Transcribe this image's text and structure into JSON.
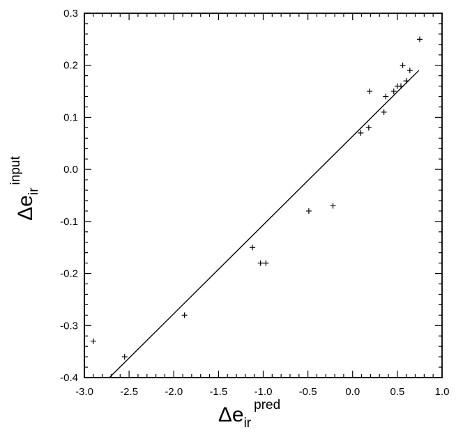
{
  "chart_data": {
    "type": "scatter",
    "title": "",
    "xlabel": {
      "main": "Δe",
      "subscript": "ir",
      "superscript": "pred"
    },
    "ylabel": {
      "main": "Δe",
      "subscript": "ir",
      "superscript": "input"
    },
    "xlim": [
      -3.0,
      1.0
    ],
    "ylim": [
      -0.4,
      0.3
    ],
    "xticks": [
      "-3.0",
      "-2.5",
      "-2.0",
      "-1.5",
      "-1.0",
      "-0.5",
      "0.0",
      "0.5",
      "1.0"
    ],
    "yticks": [
      "-0.4",
      "-0.3",
      "-0.2",
      "-0.1",
      "0.0",
      "0.1",
      "0.2",
      "0.3"
    ],
    "grid": false,
    "marker": "+",
    "series": [
      {
        "points": [
          {
            "x": -2.9,
            "y": -0.33
          },
          {
            "x": -2.55,
            "y": -0.36
          },
          {
            "x": -1.88,
            "y": -0.28
          },
          {
            "x": -1.12,
            "y": -0.15
          },
          {
            "x": -1.03,
            "y": -0.18
          },
          {
            "x": -0.97,
            "y": -0.18
          },
          {
            "x": -0.49,
            "y": -0.08
          },
          {
            "x": -0.22,
            "y": -0.07
          },
          {
            "x": 0.09,
            "y": 0.07
          },
          {
            "x": 0.18,
            "y": 0.08
          },
          {
            "x": 0.19,
            "y": 0.15
          },
          {
            "x": 0.35,
            "y": 0.11
          },
          {
            "x": 0.37,
            "y": 0.14
          },
          {
            "x": 0.46,
            "y": 0.15
          },
          {
            "x": 0.5,
            "y": 0.16
          },
          {
            "x": 0.54,
            "y": 0.16
          },
          {
            "x": 0.56,
            "y": 0.2
          },
          {
            "x": 0.6,
            "y": 0.17
          },
          {
            "x": 0.64,
            "y": 0.19
          },
          {
            "x": 0.75,
            "y": 0.25
          }
        ]
      }
    ],
    "fit_line": {
      "x": [
        -2.72,
        0.74
      ],
      "y": [
        -0.4,
        0.19
      ]
    }
  }
}
